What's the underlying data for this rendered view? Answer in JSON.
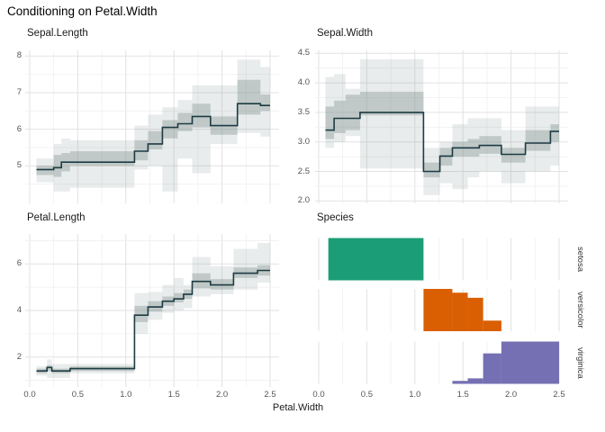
{
  "title": "Conditioning on Petal.Width",
  "x_axis": {
    "title": "Petal.Width",
    "ticks": [
      {
        "v": 0.0,
        "label": "0.0"
      },
      {
        "v": 0.5,
        "label": "0.5"
      },
      {
        "v": 1.0,
        "label": "1.0"
      },
      {
        "v": 1.5,
        "label": "1.5"
      },
      {
        "v": 2.0,
        "label": "2.0"
      },
      {
        "v": 2.5,
        "label": "2.5"
      }
    ],
    "minor": [
      0.25,
      0.75,
      1.25,
      1.75,
      2.25
    ]
  },
  "colors": {
    "step_line": "#1d3b43",
    "band_inner": "rgba(125,145,140,0.38)",
    "band_outer": "rgba(125,145,140,0.17)",
    "grid_major": "#e2e2e2",
    "grid_minor": "#efefef",
    "setosa": "#1b9e77",
    "versicolor": "#d95f02",
    "virginica": "#7570b3",
    "tick_text": "#555555",
    "title_text": "#1a1a1a"
  },
  "chart_data": [
    {
      "type": "step-line-with-bands",
      "title": "Sepal.Length",
      "x_range": [
        0,
        2.5
      ],
      "y_ticks": [
        {
          "v": 5,
          "label": "5"
        },
        {
          "v": 6,
          "label": "6"
        },
        {
          "v": 7,
          "label": "7"
        },
        {
          "v": 8,
          "label": "8"
        }
      ],
      "y_minor": [
        4.5,
        5.5,
        6.5,
        7.5
      ],
      "segments": [
        {
          "x0": 0.07,
          "x1": 0.25,
          "y": 4.9,
          "inner": [
            4.75,
            5.0
          ],
          "outer": [
            4.55,
            5.2
          ]
        },
        {
          "x0": 0.25,
          "x1": 0.33,
          "y": 4.95,
          "inner": [
            4.7,
            5.3
          ],
          "outer": [
            4.3,
            5.6
          ]
        },
        {
          "x0": 0.33,
          "x1": 0.42,
          "y": 5.1,
          "inner": [
            4.85,
            5.35
          ],
          "outer": [
            4.3,
            5.75
          ]
        },
        {
          "x0": 0.42,
          "x1": 1.09,
          "y": 5.1,
          "inner": [
            5.0,
            5.4
          ],
          "outer": [
            4.4,
            5.7
          ]
        },
        {
          "x0": 1.09,
          "x1": 1.23,
          "y": 5.4,
          "inner": [
            5.15,
            5.7
          ],
          "outer": [
            4.9,
            6.1
          ]
        },
        {
          "x0": 1.23,
          "x1": 1.38,
          "y": 5.6,
          "inner": [
            5.45,
            5.95
          ],
          "outer": [
            5.0,
            6.4
          ]
        },
        {
          "x0": 1.38,
          "x1": 1.54,
          "y": 6.05,
          "inner": [
            5.75,
            6.25
          ],
          "outer": [
            4.3,
            6.6
          ]
        },
        {
          "x0": 1.54,
          "x1": 1.69,
          "y": 6.15,
          "inner": [
            5.95,
            6.45
          ],
          "outer": [
            5.2,
            6.8
          ]
        },
        {
          "x0": 1.69,
          "x1": 1.88,
          "y": 6.35,
          "inner": [
            6.05,
            6.7
          ],
          "outer": [
            4.8,
            7.2
          ]
        },
        {
          "x0": 1.88,
          "x1": 2.16,
          "y": 6.1,
          "inner": [
            5.85,
            6.35
          ],
          "outer": [
            5.6,
            7.2
          ]
        },
        {
          "x0": 2.16,
          "x1": 2.4,
          "y": 6.7,
          "inner": [
            6.4,
            7.35
          ],
          "outer": [
            5.9,
            7.9
          ]
        },
        {
          "x0": 2.4,
          "x1": 2.5,
          "y": 6.65,
          "inner": [
            6.5,
            6.95
          ],
          "outer": [
            5.8,
            7.7
          ]
        }
      ]
    },
    {
      "type": "step-line-with-bands",
      "title": "Sepal.Width",
      "x_range": [
        0,
        2.5
      ],
      "y_ticks": [
        {
          "v": 2.0,
          "label": "2.0"
        },
        {
          "v": 2.5,
          "label": "2.5"
        },
        {
          "v": 3.0,
          "label": "3.0"
        },
        {
          "v": 3.5,
          "label": "3.5"
        },
        {
          "v": 4.0,
          "label": "4.0"
        },
        {
          "v": 4.5,
          "label": "4.5"
        }
      ],
      "y_minor": [
        2.25,
        2.75,
        3.25,
        3.75,
        4.25
      ],
      "segments": [
        {
          "x0": 0.07,
          "x1": 0.16,
          "y": 3.2,
          "inner": [
            3.05,
            3.6
          ],
          "outer": [
            2.9,
            4.1
          ]
        },
        {
          "x0": 0.16,
          "x1": 0.28,
          "y": 3.4,
          "inner": [
            3.15,
            3.7
          ],
          "outer": [
            3.0,
            4.15
          ]
        },
        {
          "x0": 0.28,
          "x1": 0.43,
          "y": 3.4,
          "inner": [
            3.2,
            3.8
          ],
          "outer": [
            3.1,
            3.9
          ]
        },
        {
          "x0": 0.43,
          "x1": 1.09,
          "y": 3.5,
          "inner": [
            3.45,
            3.85
          ],
          "outer": [
            2.55,
            4.4
          ]
        },
        {
          "x0": 1.09,
          "x1": 1.26,
          "y": 2.5,
          "inner": [
            2.4,
            2.65
          ],
          "outer": [
            2.1,
            2.9
          ]
        },
        {
          "x0": 1.26,
          "x1": 1.39,
          "y": 2.76,
          "inner": [
            2.6,
            2.9
          ],
          "outer": [
            2.3,
            3.0
          ]
        },
        {
          "x0": 1.39,
          "x1": 1.55,
          "y": 2.9,
          "inner": [
            2.75,
            3.0
          ],
          "outer": [
            2.2,
            3.3
          ]
        },
        {
          "x0": 1.55,
          "x1": 1.67,
          "y": 2.9,
          "inner": [
            2.75,
            3.05
          ],
          "outer": [
            2.4,
            3.4
          ]
        },
        {
          "x0": 1.67,
          "x1": 1.9,
          "y": 2.94,
          "inner": [
            2.8,
            3.1
          ],
          "outer": [
            2.5,
            3.4
          ]
        },
        {
          "x0": 1.9,
          "x1": 2.15,
          "y": 2.79,
          "inner": [
            2.65,
            2.9
          ],
          "outer": [
            2.3,
            3.2
          ]
        },
        {
          "x0": 2.15,
          "x1": 2.41,
          "y": 2.98,
          "inner": [
            2.85,
            3.2
          ],
          "outer": [
            2.5,
            3.6
          ]
        },
        {
          "x0": 2.41,
          "x1": 2.5,
          "y": 3.18,
          "inner": [
            3.0,
            3.3
          ],
          "outer": [
            2.6,
            3.6
          ]
        }
      ]
    },
    {
      "type": "step-line-with-bands",
      "title": "Petal.Length",
      "x_range": [
        0,
        2.5
      ],
      "y_ticks": [
        {
          "v": 2,
          "label": "2"
        },
        {
          "v": 4,
          "label": "4"
        },
        {
          "v": 6,
          "label": "6"
        }
      ],
      "y_minor": [
        1,
        3,
        5,
        7
      ],
      "segments": [
        {
          "x0": 0.07,
          "x1": 0.18,
          "y": 1.4,
          "inner": [
            1.3,
            1.5
          ],
          "outer": [
            1.2,
            1.6
          ]
        },
        {
          "x0": 0.18,
          "x1": 0.23,
          "y": 1.55,
          "inner": [
            1.4,
            1.65
          ],
          "outer": [
            1.1,
            1.9
          ]
        },
        {
          "x0": 0.23,
          "x1": 0.42,
          "y": 1.4,
          "inner": [
            1.3,
            1.5
          ],
          "outer": [
            1.1,
            1.7
          ]
        },
        {
          "x0": 0.42,
          "x1": 1.09,
          "y": 1.5,
          "inner": [
            1.4,
            1.6
          ],
          "outer": [
            1.3,
            1.7
          ]
        },
        {
          "x0": 1.09,
          "x1": 1.23,
          "y": 3.8,
          "inner": [
            3.5,
            4.2
          ],
          "outer": [
            3.0,
            4.75
          ]
        },
        {
          "x0": 1.23,
          "x1": 1.38,
          "y": 4.15,
          "inner": [
            3.95,
            4.4
          ],
          "outer": [
            3.6,
            4.8
          ]
        },
        {
          "x0": 1.38,
          "x1": 1.5,
          "y": 4.4,
          "inner": [
            4.2,
            4.6
          ],
          "outer": [
            3.9,
            5.1
          ]
        },
        {
          "x0": 1.5,
          "x1": 1.6,
          "y": 4.5,
          "inner": [
            4.35,
            4.75
          ],
          "outer": [
            4.0,
            5.4
          ]
        },
        {
          "x0": 1.6,
          "x1": 1.69,
          "y": 4.7,
          "inner": [
            4.5,
            4.9
          ],
          "outer": [
            4.1,
            5.1
          ]
        },
        {
          "x0": 1.69,
          "x1": 1.88,
          "y": 5.25,
          "inner": [
            4.95,
            5.6
          ],
          "outer": [
            4.6,
            6.3
          ]
        },
        {
          "x0": 1.88,
          "x1": 2.12,
          "y": 5.1,
          "inner": [
            4.9,
            5.35
          ],
          "outer": [
            4.7,
            5.9
          ]
        },
        {
          "x0": 2.12,
          "x1": 2.37,
          "y": 5.6,
          "inner": [
            5.4,
            5.85
          ],
          "outer": [
            4.9,
            6.65
          ]
        },
        {
          "x0": 2.37,
          "x1": 2.5,
          "y": 5.72,
          "inner": [
            5.5,
            5.95
          ],
          "outer": [
            5.2,
            6.9
          ]
        }
      ]
    },
    {
      "type": "conditional-bars",
      "title": "Species",
      "x_range": [
        0,
        2.5
      ],
      "groups": [
        {
          "name": "setosa",
          "color": "#1b9e77",
          "bars": [
            {
              "x0": 0.1,
              "x1": 1.09,
              "h": 1.0
            }
          ]
        },
        {
          "name": "versicolor",
          "color": "#d95f02",
          "bars": [
            {
              "x0": 1.09,
              "x1": 1.39,
              "h": 1.0
            },
            {
              "x0": 1.39,
              "x1": 1.55,
              "h": 0.91
            },
            {
              "x0": 1.55,
              "x1": 1.71,
              "h": 0.79
            },
            {
              "x0": 1.71,
              "x1": 1.9,
              "h": 0.25
            }
          ]
        },
        {
          "name": "virginica",
          "color": "#7570b3",
          "bars": [
            {
              "x0": 1.39,
              "x1": 1.55,
              "h": 0.07
            },
            {
              "x0": 1.55,
              "x1": 1.71,
              "h": 0.13
            },
            {
              "x0": 1.71,
              "x1": 1.9,
              "h": 0.72
            },
            {
              "x0": 1.9,
              "x1": 2.5,
              "h": 1.0
            }
          ]
        }
      ]
    }
  ]
}
